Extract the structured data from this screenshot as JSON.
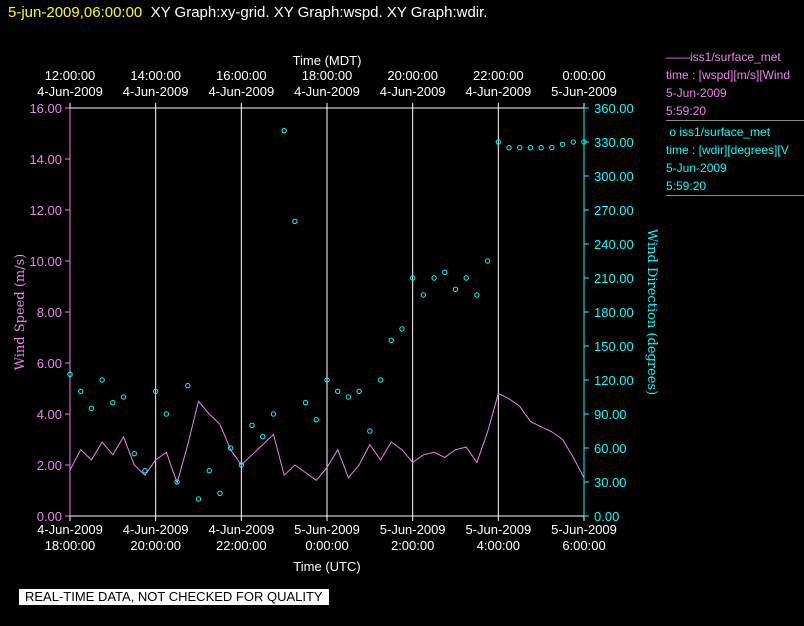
{
  "header": {
    "date": "5-jun-2009,06:00:00",
    "titles": "XY Graph:xy-grid.  XY Graph:wspd.  XY Graph:wdir."
  },
  "legend": {
    "wspd": {
      "line1": "iss1/surface_met",
      "line2": "time : [wspd][m/s][Wind",
      "line3": "5-Jun-2009",
      "line4": "5:59:20"
    },
    "wdir": {
      "line1": "iss1/surface_met",
      "line2": "time : [wdir][degrees][V",
      "line3": "5-Jun-2009",
      "line4": "5:59:20"
    }
  },
  "note": "REAL-TIME DATA, NOT CHECKED FOR QUALITY",
  "colors": {
    "wspd": "#ee82ee",
    "wdir": "#00ffff",
    "axis": "#ffffff",
    "date": "#ffff00"
  },
  "chart_data": {
    "type": "line",
    "top_axis": {
      "label": "Time (MDT)",
      "ticks": [
        [
          "12:00:00",
          "4-Jun-2009"
        ],
        [
          "14:00:00",
          "4-Jun-2009"
        ],
        [
          "16:00:00",
          "4-Jun-2009"
        ],
        [
          "18:00:00",
          "4-Jun-2009"
        ],
        [
          "20:00:00",
          "4-Jun-2009"
        ],
        [
          "22:00:00",
          "4-Jun-2009"
        ],
        [
          "0:00:00",
          "5-Jun-2009"
        ]
      ]
    },
    "bottom_axis": {
      "label": "Time (UTC)",
      "ticks": [
        [
          "4-Jun-2009",
          "18:00:00"
        ],
        [
          "4-Jun-2009",
          "20:00:00"
        ],
        [
          "4-Jun-2009",
          "22:00:00"
        ],
        [
          "5-Jun-2009",
          "0:00:00"
        ],
        [
          "5-Jun-2009",
          "2:00:00"
        ],
        [
          "5-Jun-2009",
          "4:00:00"
        ],
        [
          "5-Jun-2009",
          "6:00:00"
        ]
      ],
      "range_hours_utc": [
        18,
        30
      ]
    },
    "left_axis": {
      "label": "Wind Speed (m/s)",
      "ylim": [
        0,
        16
      ],
      "ticks": [
        "0.00",
        "2.00",
        "4.00",
        "6.00",
        "8.00",
        "10.00",
        "12.00",
        "14.00",
        "16.00"
      ]
    },
    "right_axis": {
      "label": "Wind Direction (degrees)",
      "ylim": [
        0,
        360
      ],
      "ticks": [
        "0.00",
        "30.00",
        "60.00",
        "90.00",
        "120.00",
        "150.00",
        "180.00",
        "210.00",
        "240.00",
        "270.00",
        "300.00",
        "330.00",
        "360.00"
      ]
    },
    "grid": "vertical",
    "series": [
      {
        "name": "iss1/surface_met time : [wspd][m/s]",
        "style": "line",
        "x_hours_utc": [
          18.0,
          18.25,
          18.5,
          18.75,
          19.0,
          19.25,
          19.5,
          19.75,
          20.0,
          20.25,
          20.5,
          20.75,
          21.0,
          21.25,
          21.5,
          21.75,
          22.0,
          22.25,
          22.5,
          22.75,
          23.0,
          23.25,
          23.5,
          23.75,
          24.0,
          24.25,
          24.5,
          24.75,
          25.0,
          25.25,
          25.5,
          25.75,
          26.0,
          26.25,
          26.5,
          26.75,
          27.0,
          27.25,
          27.5,
          27.75,
          28.0,
          28.25,
          28.5,
          28.75,
          29.0,
          29.25,
          29.5,
          29.75,
          30.0
        ],
        "values": [
          1.8,
          2.6,
          2.2,
          2.9,
          2.4,
          3.1,
          2.0,
          1.6,
          2.2,
          2.5,
          1.3,
          2.8,
          4.5,
          4.0,
          3.6,
          2.6,
          2.0,
          2.4,
          2.8,
          3.2,
          1.6,
          2.0,
          1.7,
          1.4,
          1.9,
          2.6,
          1.5,
          2.0,
          2.8,
          2.2,
          2.9,
          2.6,
          2.1,
          2.4,
          2.5,
          2.3,
          2.6,
          2.7,
          2.1,
          3.3,
          4.8,
          4.6,
          4.3,
          3.7,
          3.5,
          3.3,
          3.0,
          2.3,
          1.5
        ]
      },
      {
        "name": "iss1/surface_met time : [wdir][degrees]",
        "style": "markers",
        "x_hours_utc": [
          18.0,
          18.25,
          18.5,
          18.75,
          19.0,
          19.25,
          19.5,
          19.75,
          20.0,
          20.25,
          20.5,
          20.75,
          21.0,
          21.25,
          21.5,
          21.75,
          22.0,
          22.25,
          22.5,
          22.75,
          23.0,
          23.25,
          23.5,
          23.75,
          24.0,
          24.25,
          24.5,
          24.75,
          25.0,
          25.25,
          25.5,
          25.75,
          26.0,
          26.25,
          26.5,
          26.75,
          27.0,
          27.25,
          27.5,
          27.75,
          28.0,
          28.25,
          28.5,
          28.75,
          29.0,
          29.25,
          29.5,
          29.75,
          30.0
        ],
        "values": [
          125,
          110,
          95,
          120,
          100,
          105,
          55,
          40,
          110,
          90,
          30,
          115,
          15,
          40,
          20,
          60,
          45,
          80,
          70,
          90,
          340,
          260,
          100,
          85,
          120,
          110,
          105,
          110,
          75,
          120,
          155,
          165,
          210,
          195,
          210,
          215,
          200,
          210,
          195,
          225,
          330,
          325,
          325,
          325,
          325,
          325,
          328,
          330,
          330
        ]
      }
    ]
  }
}
